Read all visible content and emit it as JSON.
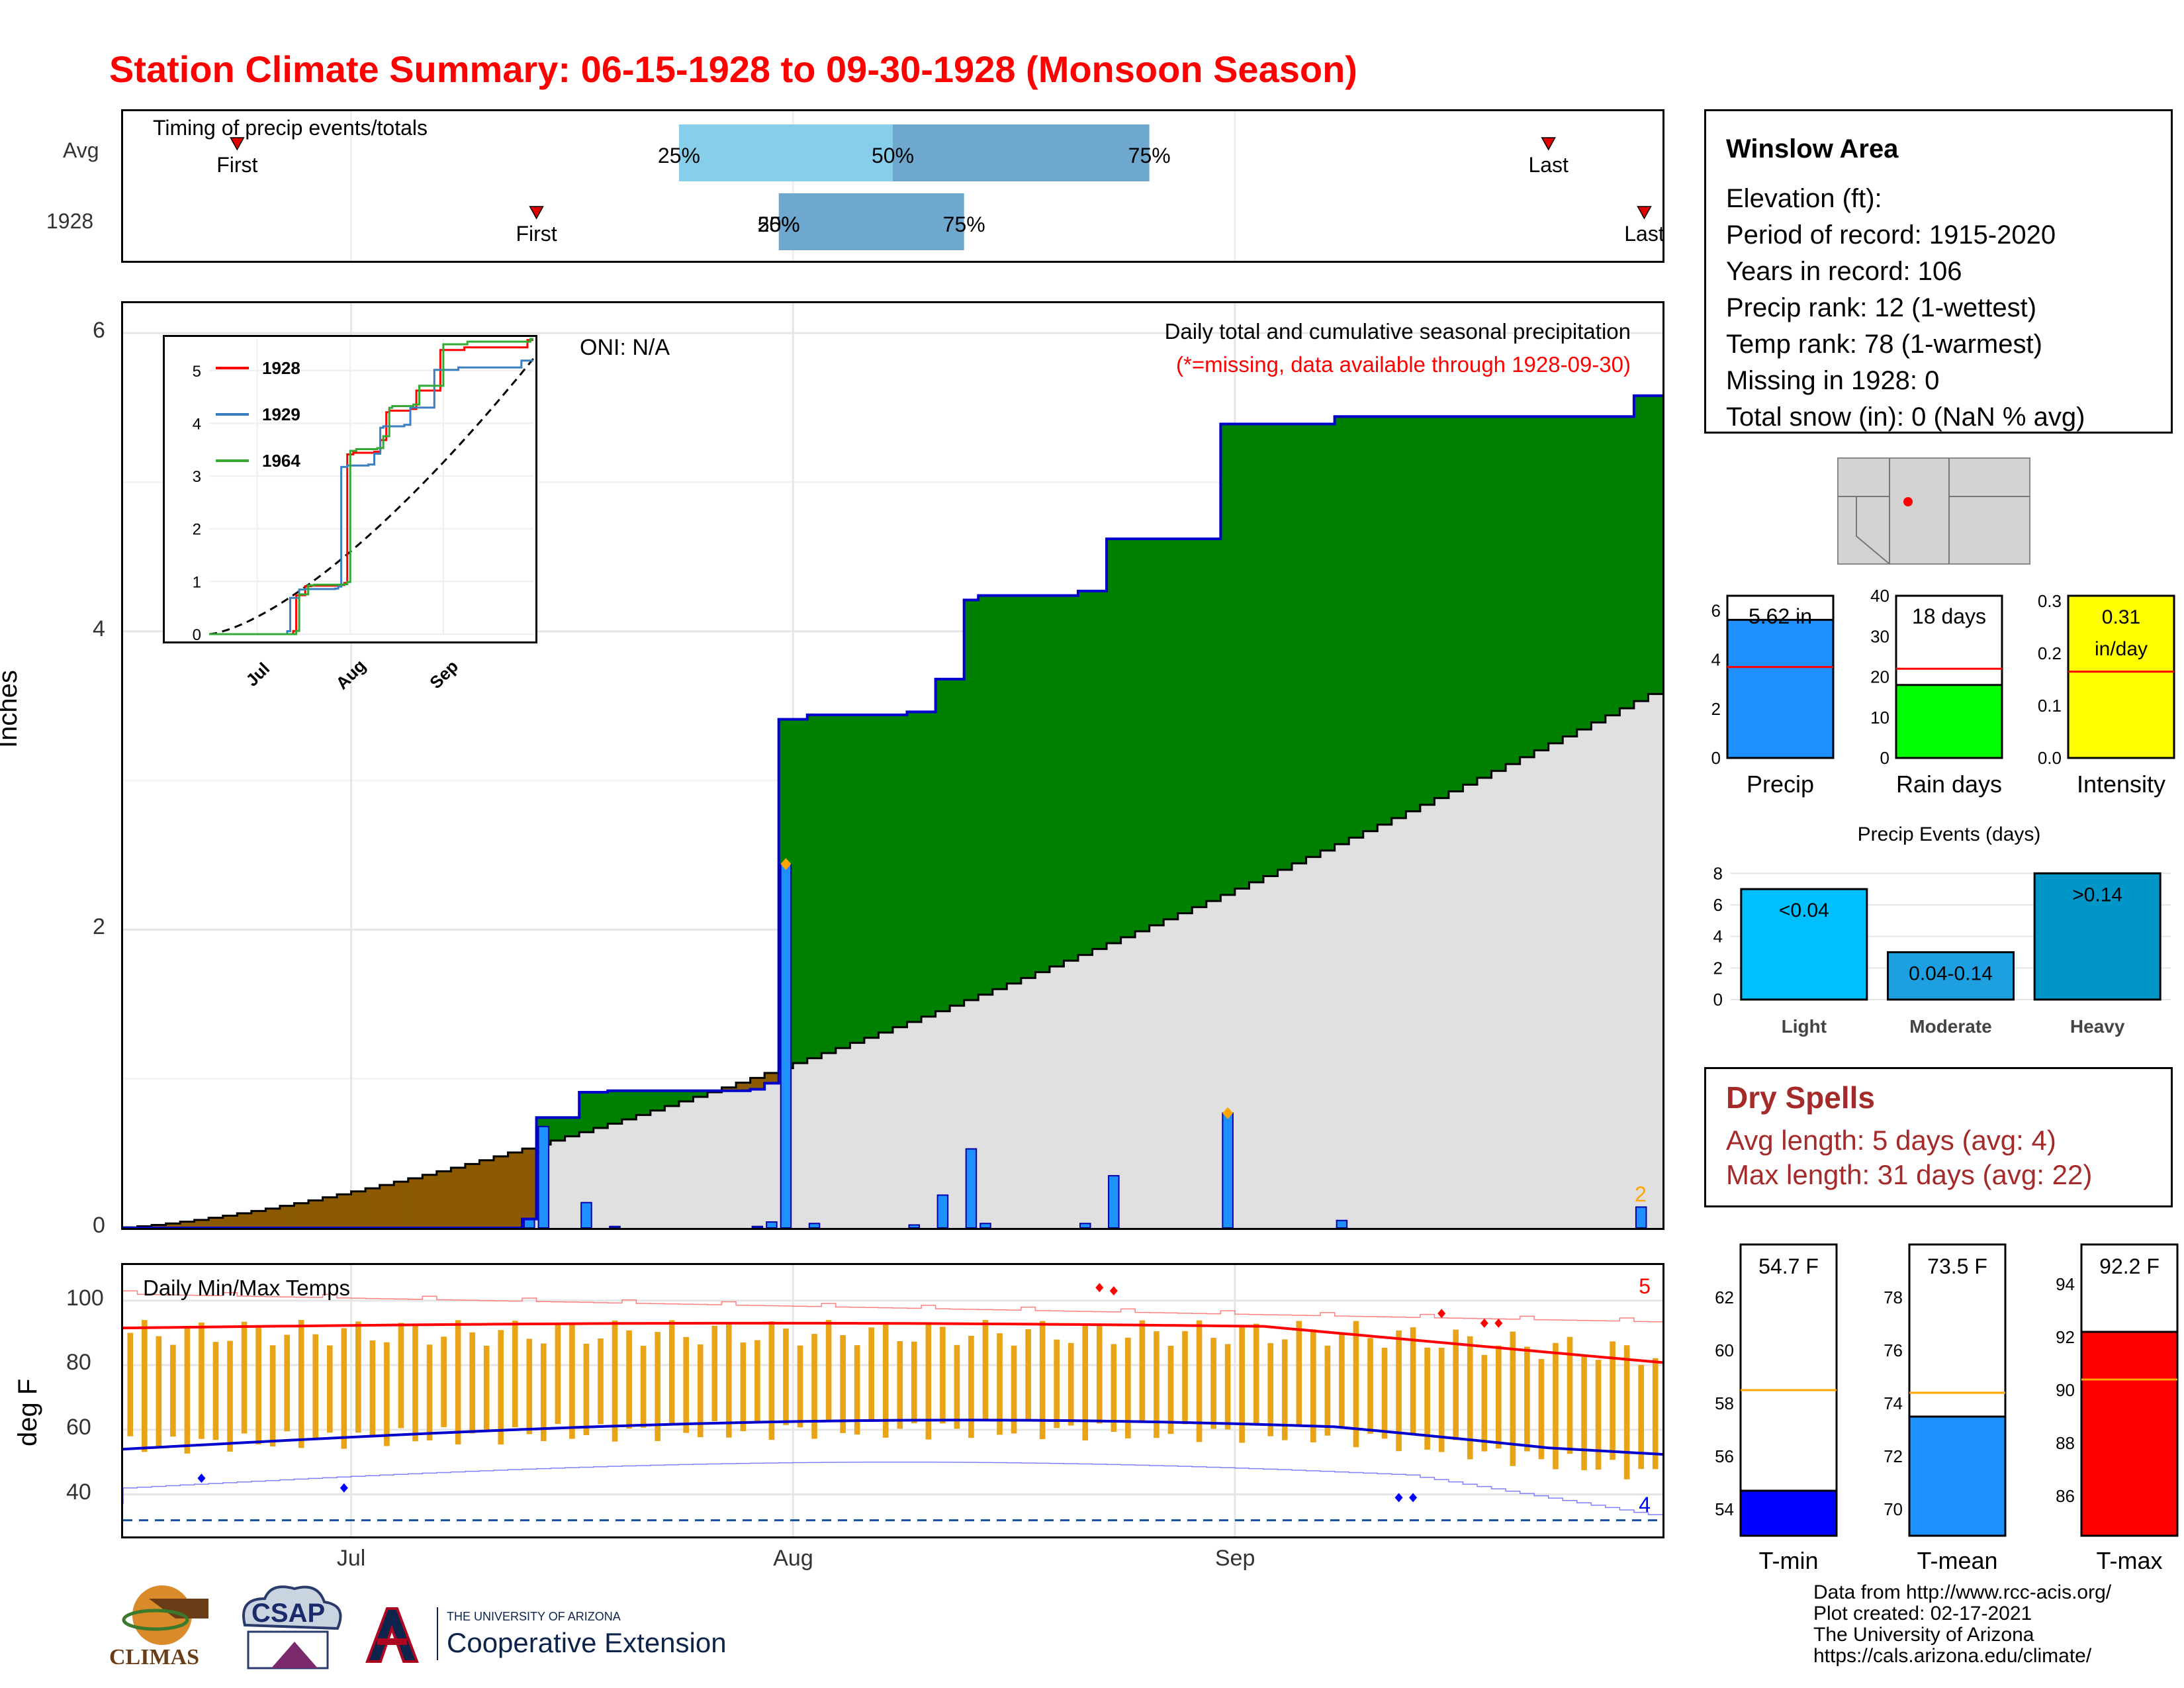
{
  "title": "Station Climate Summary: 06-15-1928 to 09-30-1928 (Monsoon Season)",
  "timing": {
    "label": "Timing of precip events/totals",
    "rows": [
      {
        "name": "Avg",
        "first": "First",
        "last": "Last",
        "p25": "25%",
        "p50": "50%",
        "p75": "75%",
        "first_date": "1928-06-23",
        "p25_date": "1928-07-24",
        "p50_date": "1928-08-08",
        "p75_date": "1928-08-26",
        "last_date": "1928-09-23"
      },
      {
        "name": "1928",
        "first": "First",
        "last": "Last",
        "p25": "25%",
        "p50": "50%",
        "p75": "75%",
        "first_date": "1928-07-14",
        "p25_date": "1928-07-31",
        "p50_date": "1928-07-31",
        "p75_date": "1928-08-13",
        "last_date": "1928-09-30"
      }
    ],
    "colors": {
      "avg_light": "#87ceeb",
      "avg_dark": "#6fa8cf",
      "marker": "#e00000"
    }
  },
  "info": {
    "title": "Winslow Area",
    "lines": [
      "Elevation (ft):",
      "Period of record: 1915-2020",
      "Years in record: 106",
      "Precip rank: 12 (1-wettest)",
      "Temp rank: 78 (1-warmest)",
      "Missing in 1928: 0",
      "Total snow (in): 0 (NaN % avg)"
    ]
  },
  "precip_panel": {
    "ylabel": "Inches",
    "oni": "ONI: N/A",
    "note1": "Daily total and cumulative seasonal precipitation",
    "note2": "(*=missing, data available through 1928-09-30)",
    "corner_count": "2",
    "yticks": [
      "0",
      "2",
      "4",
      "6"
    ],
    "ylim": [
      0,
      6.2
    ],
    "colors": {
      "above": "#008000",
      "below": "#8b5a00",
      "normal_fill": "#e0e0e0",
      "bars": "#1e90ff",
      "obs_line": "#0000cc",
      "extreme": "#ffa500"
    }
  },
  "inset": {
    "series": [
      {
        "name": "1928",
        "color": "#ff0000"
      },
      {
        "name": "1929",
        "color": "#3a7fc0"
      },
      {
        "name": "1964",
        "color": "#33aa33"
      }
    ],
    "yticks": [
      "0",
      "1",
      "2",
      "3",
      "4",
      "5"
    ],
    "xticks": [
      "Jul",
      "Aug",
      "Sep"
    ]
  },
  "temp_panel": {
    "label": "Daily Min/Max Temps",
    "ylabel": "deg F",
    "yticks": [
      "40",
      "60",
      "80",
      "100"
    ],
    "record_high_count": "5",
    "record_low_count": "4",
    "colors": {
      "bars": "#e8a317",
      "max_avg": "#ff0000",
      "min_avg": "#0000cc"
    }
  },
  "xaxis": {
    "ticks": [
      "Jul",
      "Aug",
      "Sep"
    ]
  },
  "mini_bars": [
    {
      "name": "Precip",
      "value_label": "5.62 in",
      "value": 5.62,
      "avg": 3.7,
      "ylim": [
        0,
        6.6
      ],
      "yticks": [
        "0",
        "2",
        "4",
        "6"
      ],
      "color": "#1e90ff"
    },
    {
      "name": "Rain days",
      "value_label": "18 days",
      "value": 18,
      "avg": 22,
      "ylim": [
        0,
        40
      ],
      "yticks": [
        "0",
        "10",
        "20",
        "30",
        "40"
      ],
      "color": "#00ff00"
    },
    {
      "name": "Intensity",
      "value_label": "0.31 in/day",
      "value_line1": "0.31",
      "value_line2": "in/day",
      "value": 0.31,
      "avg": 0.165,
      "ylim": [
        0,
        0.31
      ],
      "yticks": [
        "0.0",
        "0.1",
        "0.2",
        "0.3"
      ],
      "color": "#ffff00"
    }
  ],
  "events": {
    "title": "Precip Events (days)",
    "categories": [
      "Light",
      "Moderate",
      "Heavy"
    ],
    "labels": [
      "<0.04",
      "0.04-0.14",
      ">0.14"
    ],
    "values": [
      7,
      3,
      8
    ],
    "yticks": [
      "0",
      "2",
      "4",
      "6",
      "8"
    ],
    "colors": [
      "#00bfff",
      "#1ea0e0",
      "#0096c8"
    ]
  },
  "dry_spells": {
    "title": "Dry Spells",
    "avg": "Avg length: 5 days (avg: 4)",
    "max": "Max length: 31 days (avg: 22)"
  },
  "temp_bars": [
    {
      "name": "T-min",
      "value_label": "54.7 F",
      "value": 54.7,
      "avg": 58.5,
      "ylim": [
        53,
        64
      ],
      "yticks": [
        "54",
        "56",
        "58",
        "60",
        "62"
      ],
      "color": "#0000ff"
    },
    {
      "name": "T-mean",
      "value_label": "73.5 F",
      "value": 73.5,
      "avg": 74.4,
      "ylim": [
        69,
        80
      ],
      "yticks": [
        "70",
        "72",
        "74",
        "76",
        "78"
      ],
      "color": "#1e90ff"
    },
    {
      "name": "T-max",
      "value_label": "92.2 F",
      "value": 92.2,
      "avg": 90.4,
      "ylim": [
        84.5,
        95.5
      ],
      "yticks": [
        "86",
        "88",
        "90",
        "92",
        "94"
      ],
      "color": "#ff0000"
    }
  ],
  "credits": [
    "Data from http://www.rcc-acis.org/",
    "Plot created: 02-17-2021",
    "The University of Arizona",
    "https://cals.arizona.edu/climate/"
  ],
  "logos": {
    "climas": "CLIMAS",
    "csap": "CSAP",
    "ua_small": "THE UNIVERSITY OF ARIZONA",
    "ua_big": "Cooperative Extension"
  }
}
